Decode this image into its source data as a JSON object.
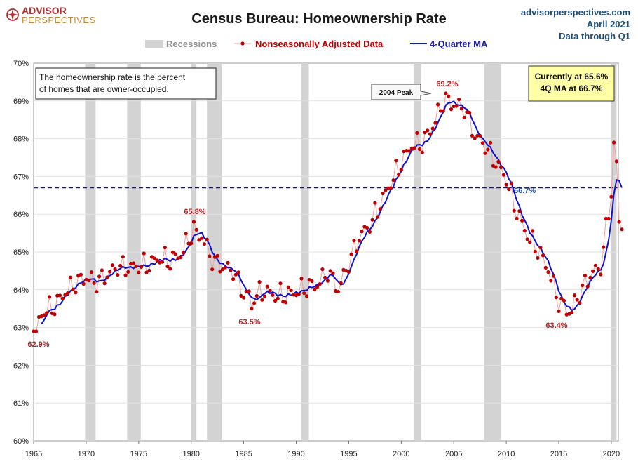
{
  "header": {
    "logo_top": "ADVISOR",
    "logo_bottom": "PERSPECTIVES",
    "title": "Census Bureau: Homeownership Rate",
    "source_site": "advisorperspectives.com",
    "source_date": "April 2021",
    "source_through": "Data through Q1"
  },
  "legend": {
    "recessions": "Recessions",
    "nsa": "Nonseasonally Adjusted Data",
    "ma": "4-Quarter MA"
  },
  "colors": {
    "recession": "#d3d3d3",
    "nsa_marker": "#c00000",
    "nsa_line": "#f0a0a0",
    "ma_line": "#1010d0",
    "reference_line": "#1010c0",
    "current_box": "#ffffa6",
    "grid": "#e2e2e2"
  },
  "annotations": {
    "note_line1": "The homeownership rate is the percent",
    "note_line2": "of homes that are owner-occupied.",
    "current_line1": "Currently at 65.6%",
    "current_line2": "4Q MA at 66.7%",
    "peak_callout": "2004 Peak",
    "label_1965": "62.9%",
    "label_1980": "65.8%",
    "label_1985": "63.5%",
    "label_2004": "69.2%",
    "label_2016": "63.4%",
    "label_ma_ref": "66.7%"
  },
  "chart_data": {
    "type": "line",
    "title": "Census Bureau: Homeownership Rate",
    "xlim": [
      1965,
      2021.5
    ],
    "ylim": [
      60,
      70
    ],
    "x_ticks": [
      "1965",
      "1970",
      "1975",
      "1980",
      "1985",
      "1990",
      "1995",
      "2000",
      "2005",
      "2010",
      "2015",
      "2020"
    ],
    "y_ticks": [
      "60%",
      "61%",
      "62%",
      "63%",
      "64%",
      "65%",
      "66%",
      "67%",
      "68%",
      "69%",
      "70%"
    ],
    "grid": true,
    "legend_position": "top",
    "reference_line": {
      "y": 66.7,
      "label": "66.7%"
    },
    "recessions": [
      [
        1969.9,
        1970.9
      ],
      [
        1973.9,
        1975.2
      ],
      [
        1980.0,
        1980.5
      ],
      [
        1981.5,
        1982.9
      ],
      [
        1990.5,
        1991.2
      ],
      [
        2001.2,
        2001.9
      ],
      [
        2007.9,
        2009.5
      ],
      [
        2020.0,
        2020.5
      ]
    ],
    "series": [
      {
        "name": "Nonseasonally Adjusted Data",
        "annual": [
          [
            1965,
            63.0
          ],
          [
            1966,
            63.4
          ],
          [
            1967,
            63.6
          ],
          [
            1968,
            63.9
          ],
          [
            1969,
            64.2
          ],
          [
            1970,
            64.3
          ],
          [
            1971,
            64.2
          ],
          [
            1972,
            64.4
          ],
          [
            1973,
            64.6
          ],
          [
            1974,
            64.6
          ],
          [
            1975,
            64.6
          ],
          [
            1976,
            64.7
          ],
          [
            1977,
            64.8
          ],
          [
            1978,
            64.8
          ],
          [
            1979,
            64.9
          ],
          [
            1980,
            65.5
          ],
          [
            1981,
            65.4
          ],
          [
            1982,
            64.8
          ],
          [
            1983,
            64.6
          ],
          [
            1984,
            64.5
          ],
          [
            1985,
            63.9
          ],
          [
            1986,
            63.8
          ],
          [
            1987,
            64.0
          ],
          [
            1988,
            63.8
          ],
          [
            1989,
            63.9
          ],
          [
            1990,
            63.9
          ],
          [
            1991,
            64.1
          ],
          [
            1992,
            64.1
          ],
          [
            1993,
            64.5
          ],
          [
            1994,
            64.0
          ],
          [
            1995,
            64.7
          ],
          [
            1996,
            65.4
          ],
          [
            1997,
            65.7
          ],
          [
            1998,
            66.3
          ],
          [
            1999,
            66.8
          ],
          [
            2000,
            67.4
          ],
          [
            2001,
            67.8
          ],
          [
            2002,
            67.9
          ],
          [
            2003,
            68.3
          ],
          [
            2004,
            69.0
          ],
          [
            2005,
            68.9
          ],
          [
            2006,
            68.8
          ],
          [
            2007,
            68.1
          ],
          [
            2008,
            67.8
          ],
          [
            2009,
            67.4
          ],
          [
            2010,
            66.9
          ],
          [
            2011,
            66.1
          ],
          [
            2012,
            65.4
          ],
          [
            2013,
            65.1
          ],
          [
            2014,
            64.5
          ],
          [
            2015,
            63.7
          ],
          [
            2016,
            63.4
          ],
          [
            2017,
            63.9
          ],
          [
            2018,
            64.4
          ],
          [
            2019,
            64.6
          ],
          [
            2020,
            66.6
          ],
          [
            2021,
            65.6
          ]
        ],
        "low_1965": 62.9,
        "high_1980": 65.8,
        "low_1985": 63.5,
        "peak_2004": 69.2,
        "low_2016": 63.4,
        "last": 65.6
      },
      {
        "name": "4-Quarter MA",
        "last": 66.7
      }
    ]
  }
}
